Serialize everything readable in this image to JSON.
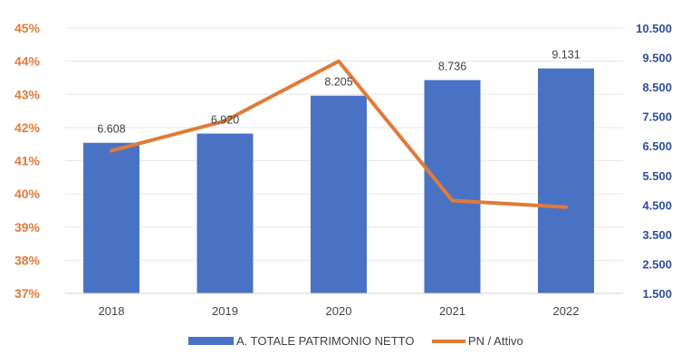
{
  "chart_data": {
    "type": "bar",
    "categories": [
      "2018",
      "2019",
      "2020",
      "2021",
      "2022"
    ],
    "series": [
      {
        "name": "A. TOTALE PATRIMONIO NETTO",
        "type": "bar",
        "axis": "right",
        "values": [
          6608,
          6920,
          8205,
          8736,
          9131
        ],
        "labels": [
          "6.608",
          "6.920",
          "8.205",
          "8.736",
          "9.131"
        ],
        "color": "#4a72c4"
      },
      {
        "name": "PN / Attivo",
        "type": "line",
        "axis": "left",
        "values": [
          41.3,
          42.2,
          44.0,
          39.8,
          39.6
        ],
        "color": "#e07b39"
      }
    ],
    "y_left": {
      "ylim": [
        37,
        45
      ],
      "ticks": [
        37,
        38,
        39,
        40,
        41,
        42,
        43,
        44,
        45
      ],
      "tick_labels": [
        "37%",
        "38%",
        "39%",
        "40%",
        "41%",
        "42%",
        "43%",
        "44%",
        "45%"
      ],
      "color": "#e07b39"
    },
    "y_right": {
      "ylim": [
        1500,
        10500
      ],
      "ticks": [
        1500,
        2500,
        3500,
        4500,
        5500,
        6500,
        7500,
        8500,
        9500,
        10500
      ],
      "tick_labels": [
        "1.500",
        "2.500",
        "3.500",
        "4.500",
        "5.500",
        "6.500",
        "7.500",
        "8.500",
        "9.500",
        "10.500"
      ],
      "color": "#2f4f9a"
    },
    "title": "",
    "xlabel": "",
    "grid": true,
    "legend_position": "bottom-center"
  }
}
